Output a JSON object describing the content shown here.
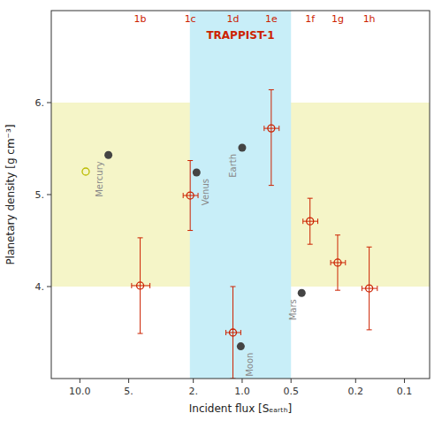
{
  "chart_data": {
    "type": "scatter",
    "title": "TRAPPIST-1",
    "x_label": "Incident flux [Sₑₐᵣₜₕ]",
    "y_label": "Planetary density [g cm⁻³]",
    "log": "x",
    "grid": false,
    "xlim": [
      15,
      0.07
    ],
    "ylim": [
      3.0,
      7.0
    ],
    "xticks": [
      {
        "value": 10.0,
        "label": "10.0"
      },
      {
        "value": 5.0,
        "label": "5."
      },
      {
        "value": 2.0,
        "label": "2."
      },
      {
        "value": 1.0,
        "label": "1.0"
      },
      0.5,
      0.2,
      0.1
    ],
    "yticks": [
      {
        "value": 4.0,
        "label": "4."
      },
      {
        "value": 5.0,
        "label": "5."
      },
      {
        "value": 6.0,
        "label": "6."
      }
    ],
    "shaded_bands": [
      {
        "axis": "y",
        "from": 4.0,
        "to": 6.0,
        "color": "#f5f5c8"
      },
      {
        "axis": "x",
        "from": 0.5,
        "to": 2.1,
        "color": "#c8eef8"
      }
    ],
    "series": [
      {
        "x": [
          9.2
        ],
        "values": [
          5.25
        ],
        "color": "#bbbb00",
        "marker": "open-circle"
      },
      {
        "x": [
          6.67,
          1.91,
          1.0,
          1.02,
          0.43
        ],
        "values": [
          5.43,
          5.24,
          5.51,
          3.35,
          3.93
        ],
        "labels": [
          "Mercury",
          "Venus",
          "Earth",
          "Moon",
          "Mars"
        ],
        "color": "#444444",
        "marker": "circle"
      },
      {
        "x": [
          4.25,
          2.09,
          1.14,
          0.662,
          0.382,
          0.258,
          0.165
        ],
        "values": [
          4.01,
          4.99,
          3.5,
          5.72,
          4.71,
          4.26,
          3.98
        ],
        "x_err": [
          0.55,
          0.22,
          0.12,
          0.07,
          0.04,
          0.027,
          0.018
        ],
        "y_err_low": [
          0.52,
          0.38,
          0.5,
          0.62,
          0.25,
          0.3,
          0.45
        ],
        "y_err_high": [
          0.52,
          0.38,
          0.5,
          0.42,
          0.25,
          0.3,
          0.45
        ],
        "labels": [
          "1b",
          "1c",
          "1d",
          "1e",
          "1f",
          "1g",
          "1h"
        ],
        "color": "#cc2200",
        "marker": "open-circle"
      }
    ]
  }
}
